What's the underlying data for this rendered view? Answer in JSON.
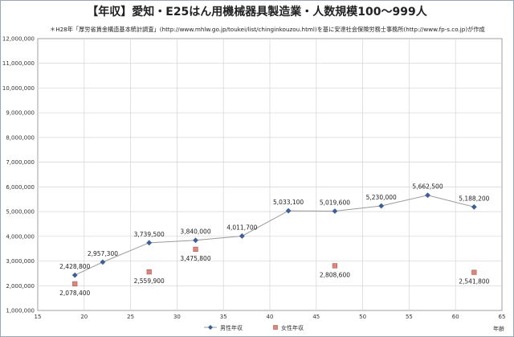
{
  "title": "【年収】愛知・E25はん用機械器具製造業・人数規模100～999人",
  "source_note": "＊H28年「厚労省賃金構造基本統計調査」(http://www.mhlw.go.jp/toukei/list/chinginkouzou.html)を基に安達社会保険労務士事務所(http://www.fp-s.co.jp)が作成",
  "chart_data": {
    "type": "scatter",
    "title": "【年収】愛知・E25はん用機械器具製造業・人数規模100～999人",
    "xlabel": "年齢",
    "ylabel": "",
    "xlim": [
      15,
      65
    ],
    "ylim": [
      1000000,
      12000000
    ],
    "x_ticks": [
      15,
      20,
      25,
      30,
      35,
      40,
      45,
      50,
      55,
      60,
      65
    ],
    "y_ticks": [
      1000000,
      2000000,
      3000000,
      4000000,
      5000000,
      6000000,
      7000000,
      8000000,
      9000000,
      10000000,
      11000000,
      12000000
    ],
    "y_tick_labels": [
      "1,000,000",
      "2,000,000",
      "3,000,000",
      "4,000,000",
      "5,000,000",
      "6,000,000",
      "7,000,000",
      "8,000,000",
      "9,000,000",
      "10,000,000",
      "11,000,000",
      "12,000,000"
    ],
    "x_tick_labels": [
      "15",
      "20",
      "25",
      "30",
      "35",
      "40",
      "45",
      "50",
      "55",
      "60",
      "65"
    ],
    "grid": true,
    "legend_position": "bottom",
    "series": [
      {
        "name": "男性年収",
        "color": "#3b5f96",
        "marker": "diamond",
        "line": true,
        "x": [
          19,
          22,
          27,
          32,
          37,
          42,
          47,
          52,
          57,
          62
        ],
        "y": [
          2428800,
          2957300,
          3739500,
          3840000,
          4011700,
          5033100,
          5019600,
          5230000,
          5662500,
          5188200
        ],
        "labels": [
          "2,428,800",
          "2,957,300",
          "3,739,500",
          "3,840,000",
          "4,011,700",
          "5,033,100",
          "5,019,600",
          "5,230,000",
          "5,662,500",
          "5,188,200"
        ]
      },
      {
        "name": "女性年収",
        "color": "#d98880",
        "marker": "square",
        "line": false,
        "x": [
          19,
          27,
          32,
          47,
          62
        ],
        "y": [
          2078400,
          2559900,
          3475800,
          2808600,
          2541800
        ],
        "labels": [
          "2,078,400",
          "2,559,900",
          "3,475,800",
          "2,808,600",
          "2,541,800"
        ]
      }
    ]
  }
}
